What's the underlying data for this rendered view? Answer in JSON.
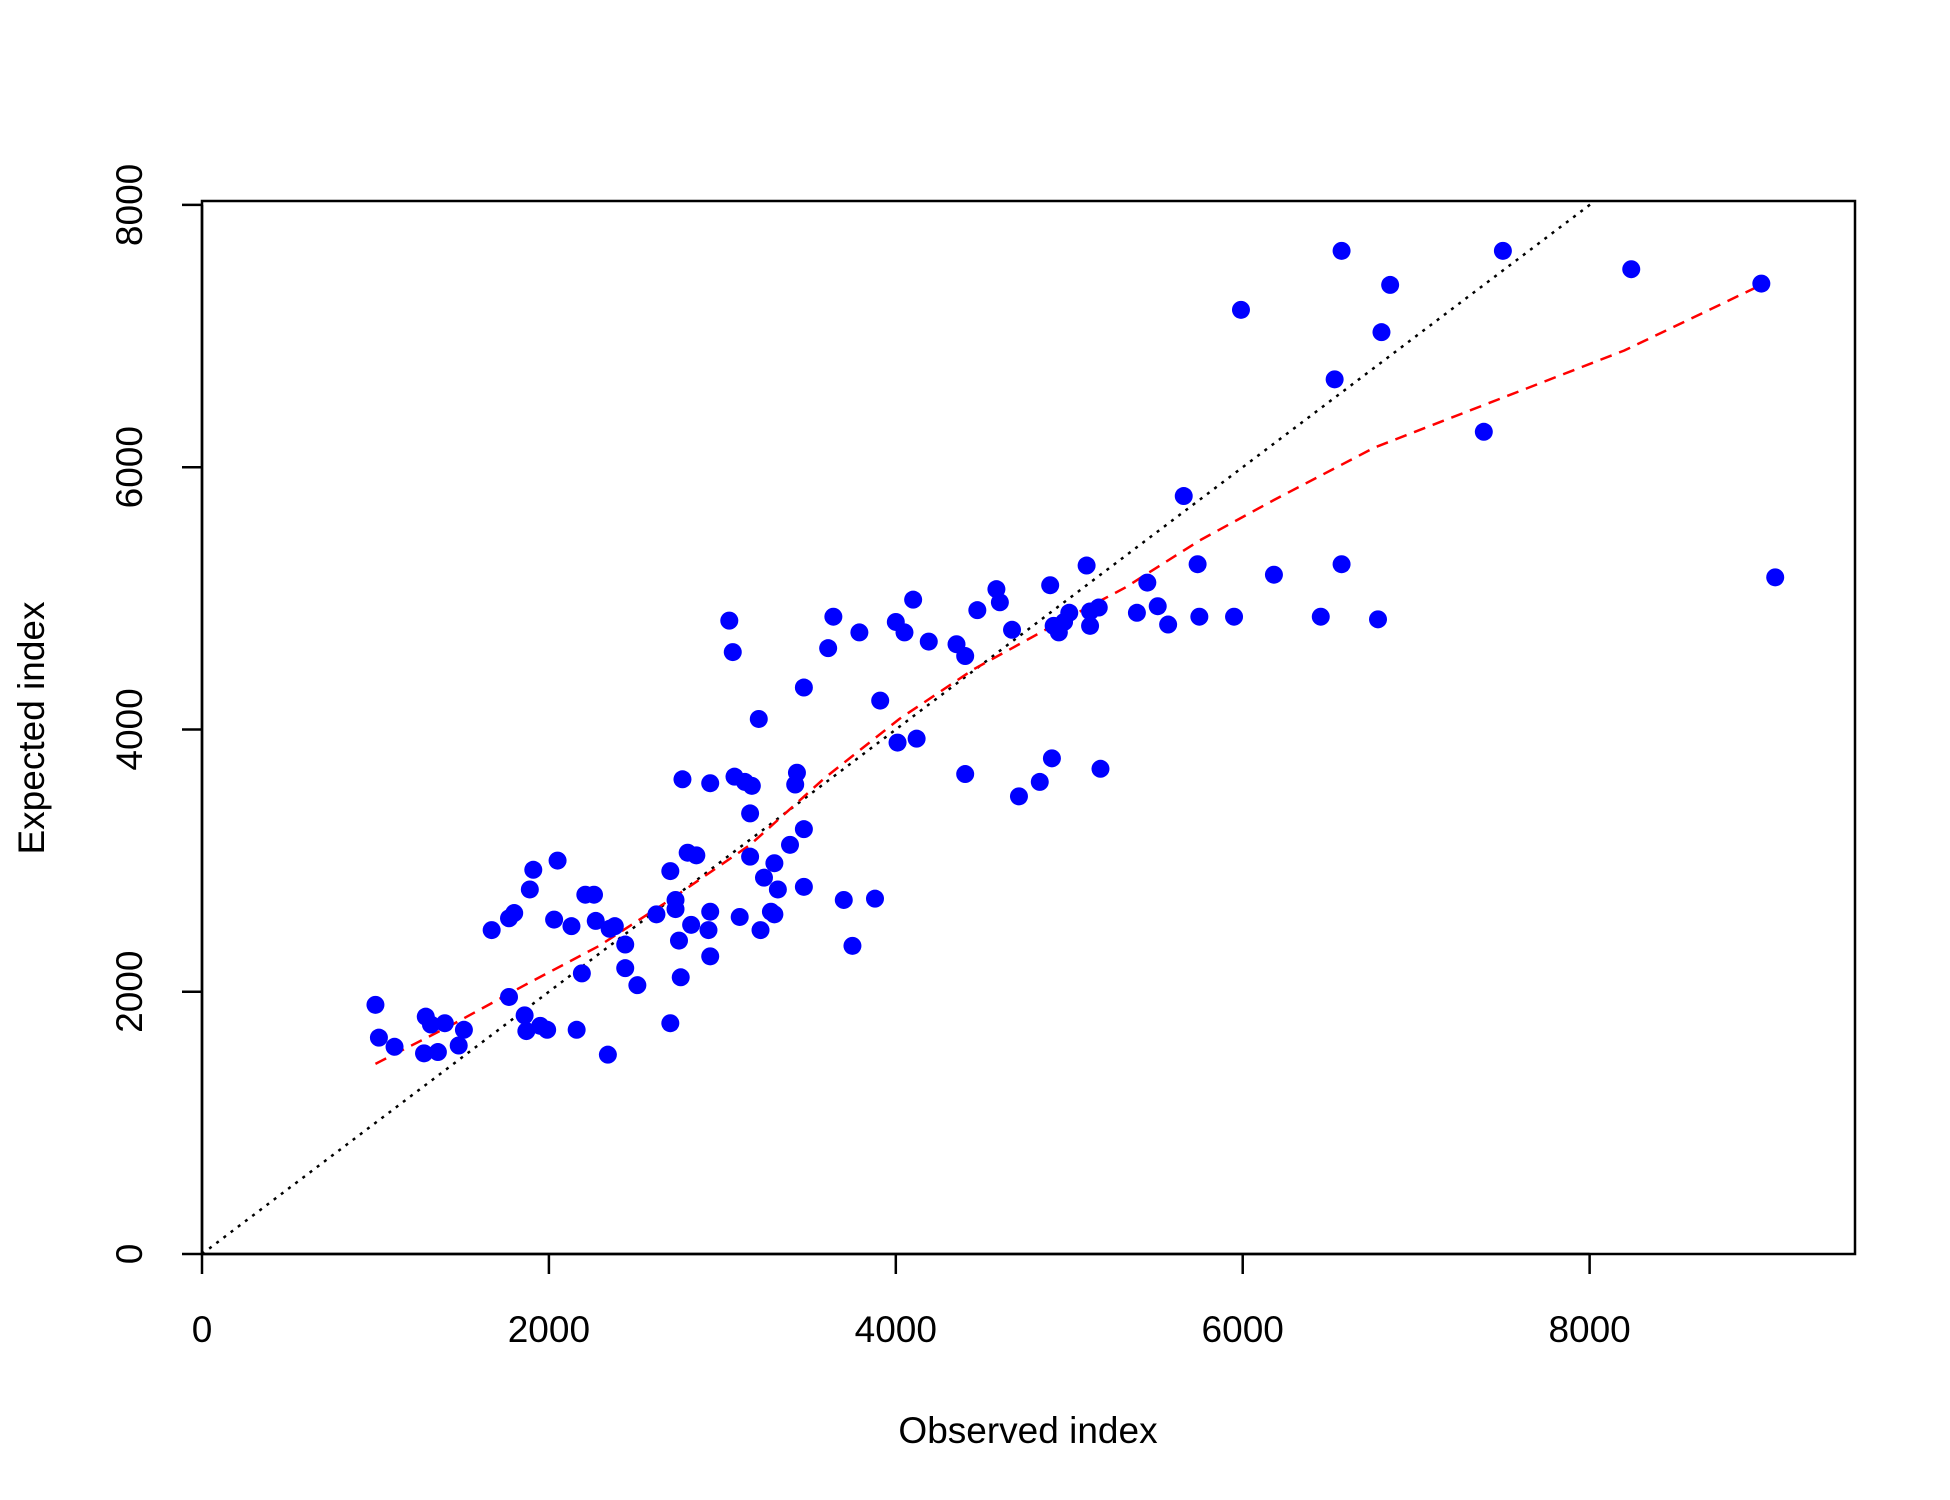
{
  "chart_data": {
    "type": "scatter",
    "xlabel": "Observed index",
    "ylabel": "Expected index",
    "color": "#0000ff",
    "xlim": [
      0,
      9530
    ],
    "ylim": [
      0,
      8030
    ],
    "xticks": [
      0,
      2000,
      4000,
      6000,
      8000
    ],
    "yticks": [
      0,
      2000,
      4000,
      6000,
      8000
    ],
    "x": [
      1000,
      1020,
      1110,
      1280,
      1290,
      1320,
      1360,
      1400,
      1480,
      1510,
      1670,
      1770,
      1800,
      1770,
      1860,
      1870,
      1890,
      1910,
      1950,
      1990,
      2030,
      2050,
      2130,
      2160,
      2190,
      2210,
      2260,
      2270,
      2340,
      2350,
      2380,
      2440,
      2440,
      2510,
      2620,
      2700,
      2700,
      2730,
      2730,
      2750,
      2760,
      2770,
      2800,
      2820,
      2850,
      2920,
      2930,
      2930,
      2930,
      3040,
      3060,
      3070,
      3100,
      3130,
      3170,
      3160,
      3160,
      3210,
      3220,
      3240,
      3280,
      3300,
      3300,
      3320,
      3390,
      3420,
      3430,
      3470,
      3470,
      3470,
      3610,
      3640,
      3700,
      3750,
      3790,
      3880,
      3910,
      4000,
      4010,
      4050,
      4100,
      4120,
      4190,
      4350,
      4400,
      4400,
      4470,
      4580,
      4600,
      4670,
      4710,
      4830,
      4890,
      4900,
      4910,
      4940,
      4970,
      5000,
      5100,
      5120,
      5120,
      5170,
      5180,
      5390,
      5450,
      5510,
      5570,
      5660,
      5740,
      5750,
      5950,
      5990,
      6180,
      6450,
      6530,
      6570,
      6570,
      6780,
      6800,
      6850,
      7390,
      7500,
      8240,
      8990,
      9070
    ],
    "values": [
      1900,
      1650,
      1580,
      1530,
      1810,
      1750,
      1540,
      1760,
      1590,
      1710,
      2470,
      2560,
      2600,
      1960,
      1820,
      1700,
      2780,
      2930,
      1740,
      1710,
      2550,
      3000,
      2500,
      1710,
      2140,
      2740,
      2740,
      2540,
      1520,
      2480,
      2500,
      2360,
      2180,
      2050,
      2590,
      1760,
      2920,
      2700,
      2630,
      2390,
      2110,
      3620,
      3060,
      2510,
      3040,
      2470,
      3590,
      2610,
      2270,
      4830,
      4590,
      3640,
      2570,
      3600,
      3570,
      3360,
      3030,
      4080,
      2470,
      2870,
      2610,
      2590,
      2980,
      2780,
      3120,
      3580,
      3670,
      2800,
      3240,
      4320,
      4620,
      4860,
      2700,
      2350,
      4740,
      2710,
      4220,
      4820,
      3900,
      4740,
      4990,
      3930,
      4670,
      4650,
      3660,
      4560,
      4910,
      5070,
      4970,
      4760,
      3490,
      3600,
      5100,
      3780,
      4790,
      4740,
      4820,
      4890,
      5250,
      4900,
      4790,
      4930,
      3700,
      4890,
      5120,
      4940,
      4800,
      5780,
      5260,
      4860,
      4860,
      7200,
      5180,
      4860,
      6670,
      7650,
      5260,
      4840,
      7030,
      7390,
      6270,
      7650,
      7510,
      7400,
      5160
    ],
    "fit_line": {
      "color": "#ff0000",
      "x": [
        1000,
        1430,
        1860,
        2290,
        2720,
        3160,
        3590,
        4020,
        4450,
        4890,
        5320,
        5750,
        6180,
        6760,
        7480,
        8200,
        8990
      ],
      "y": [
        1450,
        1740,
        2050,
        2350,
        2720,
        3120,
        3630,
        4080,
        4460,
        4780,
        5080,
        5440,
        5750,
        6150,
        6520,
        6890,
        7390
      ]
    },
    "reference_line": {
      "slope": 1,
      "intercept": 0,
      "color": "#000000"
    }
  }
}
